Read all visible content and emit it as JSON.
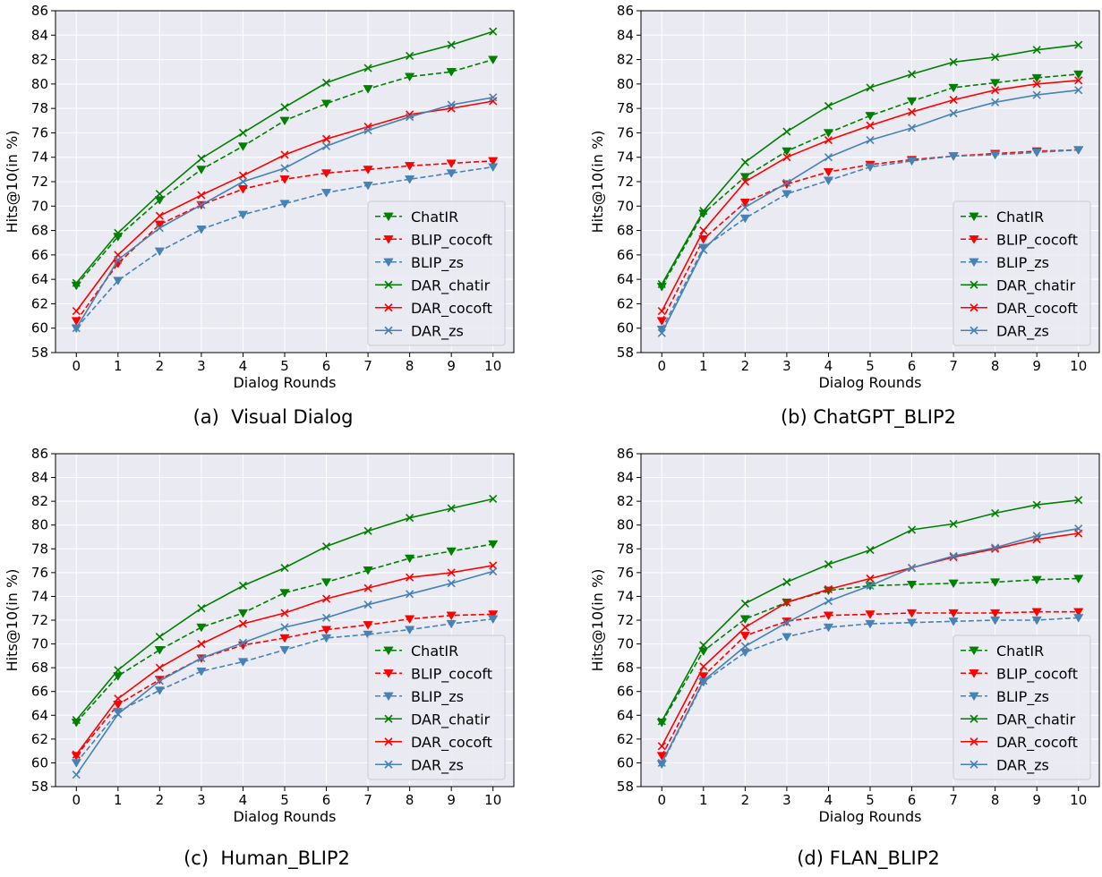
{
  "chart_data": [
    {
      "type": "line",
      "caption": "(a)  Visual Dialog",
      "xlabel": "Dialog Rounds",
      "ylabel": "Hits@10(in %)",
      "x": [
        0,
        1,
        2,
        3,
        4,
        5,
        6,
        7,
        8,
        9,
        10
      ],
      "xlim": [
        -0.5,
        10.5
      ],
      "ylim": [
        58,
        86
      ],
      "yticks": [
        58,
        60,
        62,
        64,
        66,
        68,
        70,
        72,
        74,
        76,
        78,
        80,
        82,
        84,
        86
      ],
      "grid": true,
      "legend_position": "lower-right",
      "series": [
        {
          "name": "ChatIR",
          "color": "#008000",
          "style": "dashed",
          "marker": "triangle-down",
          "values": [
            63.5,
            67.5,
            70.5,
            73.0,
            74.9,
            77.0,
            78.4,
            79.6,
            80.6,
            81.0,
            82.0
          ]
        },
        {
          "name": "BLIP_cocoft",
          "color": "#ff0000",
          "style": "dashed",
          "marker": "triangle-down",
          "values": [
            60.6,
            65.3,
            68.5,
            70.1,
            71.4,
            72.2,
            72.7,
            73.0,
            73.3,
            73.5,
            73.7
          ]
        },
        {
          "name": "BLIP_zs",
          "color": "#4682b4",
          "style": "dashed",
          "marker": "triangle-down",
          "values": [
            60.0,
            63.9,
            66.3,
            68.1,
            69.3,
            70.2,
            71.1,
            71.7,
            72.2,
            72.7,
            73.2
          ]
        },
        {
          "name": "DAR_chatir",
          "color": "#008000",
          "style": "solid",
          "marker": "x",
          "values": [
            63.7,
            67.8,
            71.0,
            73.9,
            76.0,
            78.1,
            80.1,
            81.3,
            82.3,
            83.2,
            84.3
          ]
        },
        {
          "name": "DAR_cocoft",
          "color": "#ff0000",
          "style": "solid",
          "marker": "x",
          "values": [
            61.4,
            66.0,
            69.2,
            70.9,
            72.5,
            74.2,
            75.5,
            76.5,
            77.5,
            78.0,
            78.6
          ]
        },
        {
          "name": "DAR_zs",
          "color": "#4682b4",
          "style": "solid",
          "marker": "x",
          "values": [
            60.0,
            65.6,
            68.2,
            70.1,
            72.0,
            73.1,
            74.9,
            76.2,
            77.3,
            78.3,
            78.9
          ]
        }
      ]
    },
    {
      "type": "line",
      "caption": "(b) ChatGPT_BLIP2",
      "xlabel": "Dialog Rounds",
      "ylabel": "Hits@10(in %)",
      "x": [
        0,
        1,
        2,
        3,
        4,
        5,
        6,
        7,
        8,
        9,
        10
      ],
      "xlim": [
        -0.5,
        10.5
      ],
      "ylim": [
        58,
        86
      ],
      "yticks": [
        58,
        60,
        62,
        64,
        66,
        68,
        70,
        72,
        74,
        76,
        78,
        80,
        82,
        84,
        86
      ],
      "grid": true,
      "legend_position": "lower-right",
      "series": [
        {
          "name": "ChatIR",
          "color": "#008000",
          "style": "dashed",
          "marker": "triangle-down",
          "values": [
            63.4,
            69.4,
            72.4,
            74.5,
            76.0,
            77.4,
            78.6,
            79.7,
            80.1,
            80.5,
            80.8
          ]
        },
        {
          "name": "BLIP_cocoft",
          "color": "#ff0000",
          "style": "dashed",
          "marker": "triangle-down",
          "values": [
            60.6,
            67.3,
            70.3,
            71.8,
            72.8,
            73.4,
            73.8,
            74.1,
            74.3,
            74.5,
            74.6
          ]
        },
        {
          "name": "BLIP_zs",
          "color": "#4682b4",
          "style": "dashed",
          "marker": "triangle-down",
          "values": [
            59.9,
            66.6,
            69.0,
            71.0,
            72.1,
            73.2,
            73.7,
            74.1,
            74.2,
            74.4,
            74.6
          ]
        },
        {
          "name": "DAR_chatir",
          "color": "#008000",
          "style": "solid",
          "marker": "x",
          "values": [
            63.6,
            69.6,
            73.6,
            76.1,
            78.2,
            79.7,
            80.8,
            81.8,
            82.2,
            82.8,
            83.2
          ]
        },
        {
          "name": "DAR_cocoft",
          "color": "#ff0000",
          "style": "solid",
          "marker": "x",
          "values": [
            61.4,
            68.0,
            72.0,
            74.0,
            75.4,
            76.6,
            77.7,
            78.7,
            79.5,
            80.0,
            80.3
          ]
        },
        {
          "name": "DAR_zs",
          "color": "#4682b4",
          "style": "solid",
          "marker": "x",
          "values": [
            59.6,
            66.4,
            69.9,
            71.9,
            74.0,
            75.4,
            76.4,
            77.6,
            78.5,
            79.1,
            79.5
          ]
        }
      ]
    },
    {
      "type": "line",
      "caption": "(c)  Human_BLIP2",
      "xlabel": "Dialog Rounds",
      "ylabel": "Hits@10(in %)",
      "x": [
        0,
        1,
        2,
        3,
        4,
        5,
        6,
        7,
        8,
        9,
        10
      ],
      "xlim": [
        -0.5,
        10.5
      ],
      "ylim": [
        58,
        86
      ],
      "yticks": [
        58,
        60,
        62,
        64,
        66,
        68,
        70,
        72,
        74,
        76,
        78,
        80,
        82,
        84,
        86
      ],
      "grid": true,
      "legend_position": "lower-right",
      "series": [
        {
          "name": "ChatIR",
          "color": "#008000",
          "style": "dashed",
          "marker": "triangle-down",
          "values": [
            63.4,
            67.3,
            69.5,
            71.4,
            72.6,
            74.3,
            75.2,
            76.2,
            77.2,
            77.8,
            78.4
          ]
        },
        {
          "name": "BLIP_cocoft",
          "color": "#ff0000",
          "style": "dashed",
          "marker": "triangle-down",
          "values": [
            60.6,
            64.9,
            67.0,
            68.8,
            69.9,
            70.5,
            71.2,
            71.6,
            72.1,
            72.4,
            72.5
          ]
        },
        {
          "name": "BLIP_zs",
          "color": "#4682b4",
          "style": "dashed",
          "marker": "triangle-down",
          "values": [
            60.0,
            64.3,
            66.1,
            67.7,
            68.5,
            69.5,
            70.5,
            70.8,
            71.2,
            71.7,
            72.1
          ]
        },
        {
          "name": "DAR_chatir",
          "color": "#008000",
          "style": "solid",
          "marker": "x",
          "values": [
            63.6,
            67.8,
            70.6,
            73.0,
            74.9,
            76.4,
            78.2,
            79.5,
            80.6,
            81.4,
            82.2
          ]
        },
        {
          "name": "DAR_cocoft",
          "color": "#ff0000",
          "style": "solid",
          "marker": "x",
          "values": [
            60.7,
            65.4,
            68.0,
            70.0,
            71.7,
            72.6,
            73.8,
            74.7,
            75.6,
            76.0,
            76.6
          ]
        },
        {
          "name": "DAR_zs",
          "color": "#4682b4",
          "style": "solid",
          "marker": "x",
          "values": [
            59.0,
            64.1,
            66.9,
            68.8,
            70.1,
            71.4,
            72.2,
            73.3,
            74.2,
            75.1,
            76.1
          ]
        }
      ]
    },
    {
      "type": "line",
      "caption": "(d) FLAN_BLIP2",
      "xlabel": "Dialog Rounds",
      "ylabel": "Hits@10(in %)",
      "x": [
        0,
        1,
        2,
        3,
        4,
        5,
        6,
        7,
        8,
        9,
        10
      ],
      "xlim": [
        -0.5,
        10.5
      ],
      "ylim": [
        58,
        86
      ],
      "yticks": [
        58,
        60,
        62,
        64,
        66,
        68,
        70,
        72,
        74,
        76,
        78,
        80,
        82,
        84,
        86
      ],
      "grid": true,
      "legend_position": "lower-right",
      "series": [
        {
          "name": "ChatIR",
          "color": "#008000",
          "style": "dashed",
          "marker": "triangle-down",
          "values": [
            63.4,
            69.4,
            72.1,
            73.5,
            74.5,
            74.9,
            75.0,
            75.1,
            75.2,
            75.4,
            75.5
          ]
        },
        {
          "name": "BLIP_cocoft",
          "color": "#ff0000",
          "style": "dashed",
          "marker": "triangle-down",
          "values": [
            60.6,
            67.3,
            70.7,
            71.9,
            72.4,
            72.5,
            72.6,
            72.6,
            72.6,
            72.7,
            72.7
          ]
        },
        {
          "name": "BLIP_zs",
          "color": "#4682b4",
          "style": "dashed",
          "marker": "triangle-down",
          "values": [
            59.9,
            66.8,
            69.3,
            70.6,
            71.4,
            71.7,
            71.8,
            71.9,
            72.0,
            72.0,
            72.2
          ]
        },
        {
          "name": "DAR_chatir",
          "color": "#008000",
          "style": "solid",
          "marker": "x",
          "values": [
            63.5,
            69.9,
            73.4,
            75.2,
            76.7,
            77.9,
            79.6,
            80.1,
            81.0,
            81.7,
            82.1
          ]
        },
        {
          "name": "DAR_cocoft",
          "color": "#ff0000",
          "style": "solid",
          "marker": "x",
          "values": [
            61.4,
            68.1,
            71.4,
            73.5,
            74.6,
            75.5,
            76.4,
            77.3,
            78.0,
            78.8,
            79.3
          ]
        },
        {
          "name": "DAR_zs",
          "color": "#4682b4",
          "style": "solid",
          "marker": "x",
          "values": [
            60.0,
            66.9,
            69.8,
            71.8,
            73.6,
            74.9,
            76.4,
            77.4,
            78.1,
            79.1,
            79.7
          ]
        }
      ]
    }
  ]
}
